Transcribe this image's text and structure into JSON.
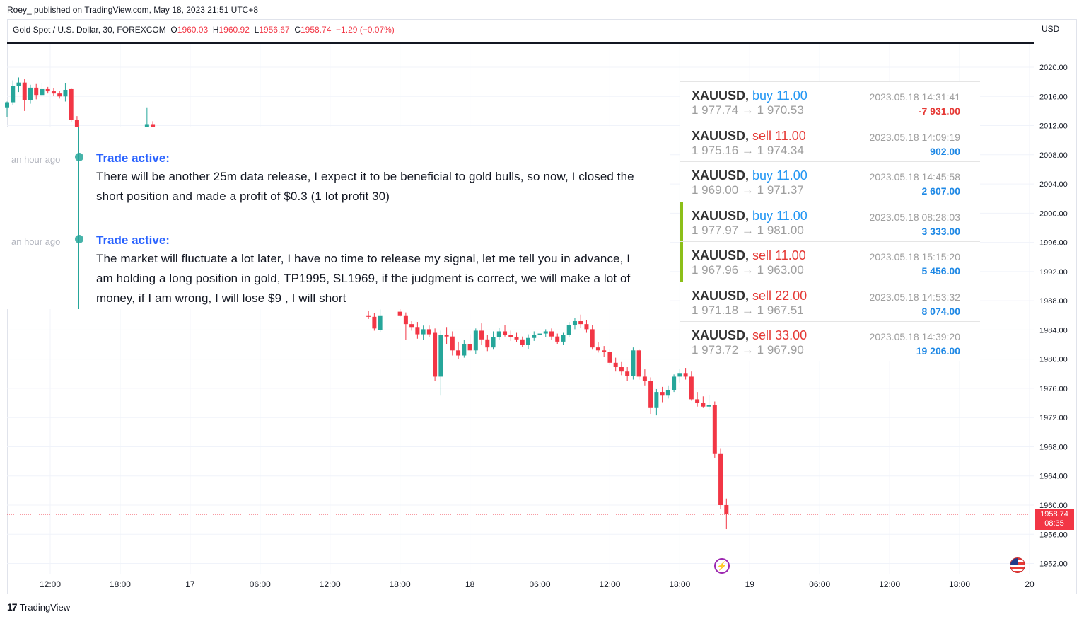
{
  "header": {
    "published": "Roey_ published on TradingView.com, May 18, 2023 21:51 UTC+8",
    "symbol": "Gold Spot / U.S. Dollar, 30, FOREXCOM",
    "o_label": "O",
    "o_value": "1960.03",
    "h_label": "H",
    "h_value": "1960.92",
    "l_label": "L",
    "l_value": "1956.67",
    "c_label": "C",
    "c_value": "1958.74",
    "change": "−1.29 (−0.07%)",
    "currency": "USD"
  },
  "colors": {
    "up": "#26a69a",
    "down": "#f23645",
    "idea_title": "#2962ff",
    "buy": "#2196f3",
    "sell": "#e53935",
    "highlight_bar": "#8cbf18"
  },
  "ideas": [
    {
      "time": "an hour ago",
      "title": "Trade active:",
      "text": "There will be another 25m data release, I expect it to be beneficial to gold bulls, so now, I closed the short position and made a profit of $0.3 (1 lot profit 30)"
    },
    {
      "time": "an hour ago",
      "title": "Trade active:",
      "text": "The market will fluctuate a lot later, I have no time to release my signal, let me tell you in advance, I am holding a long position in gold, TP1995, SL1969, if the judgment is correct, we will make a lot of money, if I am wrong, I will lose $9 , I will short"
    }
  ],
  "trades": [
    {
      "symbol": "XAUUSD,",
      "side": "buy",
      "qty": "11.00",
      "open": "1 977.74",
      "arrow": "→",
      "close": "1 970.53",
      "date": "2023.05.18 14:31:41",
      "profit": "-7 931.00",
      "highlight": false
    },
    {
      "symbol": "XAUUSD,",
      "side": "sell",
      "qty": "11.00",
      "open": "1 975.16",
      "arrow": "→",
      "close": "1 974.34",
      "date": "2023.05.18 14:09:19",
      "profit": "902.00",
      "highlight": false
    },
    {
      "symbol": "XAUUSD,",
      "side": "buy",
      "qty": "11.00",
      "open": "1 969.00",
      "arrow": "→",
      "close": "1 971.37",
      "date": "2023.05.18 14:45:58",
      "profit": "2 607.00",
      "highlight": false
    },
    {
      "symbol": "XAUUSD,",
      "side": "buy",
      "qty": "11.00",
      "open": "1 977.97",
      "arrow": "→",
      "close": "1 981.00",
      "date": "2023.05.18 08:28:03",
      "profit": "3 333.00",
      "highlight": true
    },
    {
      "symbol": "XAUUSD,",
      "side": "sell",
      "qty": "11.00",
      "open": "1 967.96",
      "arrow": "→",
      "close": "1 963.00",
      "date": "2023.05.18 15:15:20",
      "profit": "5 456.00",
      "highlight": true
    },
    {
      "symbol": "XAUUSD,",
      "side": "sell",
      "qty": "22.00",
      "open": "1 971.18",
      "arrow": "→",
      "close": "1 967.51",
      "date": "2023.05.18 14:53:32",
      "profit": "8 074.00",
      "highlight": false
    },
    {
      "symbol": "XAUUSD,",
      "side": "sell",
      "qty": "33.00",
      "open": "1 973.72",
      "arrow": "→",
      "close": "1 967.90",
      "date": "2023.05.18 14:39:20",
      "profit": "19 206.00",
      "highlight": false
    }
  ],
  "price_badge": {
    "price": "1958.74",
    "countdown": "08:35"
  },
  "footer": {
    "logo_mark": "17",
    "logo_text": "TradingView"
  },
  "chart_data": {
    "type": "candlestick",
    "y_ticks": [
      "2020.00",
      "2016.00",
      "2012.00",
      "2008.00",
      "2004.00",
      "2000.00",
      "1996.00",
      "1992.00",
      "1988.00",
      "1984.00",
      "1980.00",
      "1976.00",
      "1972.00",
      "1968.00",
      "1964.00",
      "1960.00",
      "1956.00",
      "1952.00"
    ],
    "ylim": [
      1950.5,
      2023.2
    ],
    "x_ticks": [
      {
        "label": "12:00",
        "t": 12
      },
      {
        "label": "18:00",
        "t": 18
      },
      {
        "label": "17",
        "t": 24
      },
      {
        "label": "06:00",
        "t": 30
      },
      {
        "label": "12:00",
        "t": 36
      },
      {
        "label": "18:00",
        "t": 42
      },
      {
        "label": "18",
        "t": 48
      },
      {
        "label": "06:00",
        "t": 54
      },
      {
        "label": "12:00",
        "t": 60
      },
      {
        "label": "18:00",
        "t": 66
      },
      {
        "label": "19",
        "t": 72
      },
      {
        "label": "06:00",
        "t": 78
      },
      {
        "label": "12:00",
        "t": 84
      },
      {
        "label": "18:00",
        "t": 90
      },
      {
        "label": "20",
        "t": 96
      }
    ],
    "current_price": 1958.74,
    "candles_early": [
      {
        "t": 8.3,
        "o": 2014.5,
        "h": 2015.3,
        "l": 2013.2,
        "c": 2015.2
      },
      {
        "t": 8.8,
        "o": 2015.2,
        "h": 2018.2,
        "l": 2014.8,
        "c": 2017.4
      },
      {
        "t": 9.3,
        "o": 2017.4,
        "h": 2018.6,
        "l": 2016.6,
        "c": 2017.9
      },
      {
        "t": 9.8,
        "o": 2017.9,
        "h": 2018.4,
        "l": 2014.0,
        "c": 2015.5
      },
      {
        "t": 10.3,
        "o": 2015.5,
        "h": 2017.6,
        "l": 2015.0,
        "c": 2017.2
      },
      {
        "t": 10.8,
        "o": 2017.2,
        "h": 2017.7,
        "l": 2015.6,
        "c": 2016.2
      },
      {
        "t": 11.3,
        "o": 2016.2,
        "h": 2017.8,
        "l": 2016.0,
        "c": 2017.0
      },
      {
        "t": 11.8,
        "o": 2017.0,
        "h": 2017.3,
        "l": 2016.4,
        "c": 2016.7
      },
      {
        "t": 12.3,
        "o": 2016.7,
        "h": 2017.1,
        "l": 2016.1,
        "c": 2016.4
      },
      {
        "t": 12.8,
        "o": 2016.4,
        "h": 2016.8,
        "l": 2015.7,
        "c": 2016.0
      },
      {
        "t": 13.3,
        "o": 2016.0,
        "h": 2017.8,
        "l": 2015.3,
        "c": 2016.9
      },
      {
        "t": 13.8,
        "o": 2017.0,
        "h": 2017.1,
        "l": 2012.5,
        "c": 2012.8
      },
      {
        "t": 14.3,
        "o": 2012.8,
        "h": 2013.3,
        "l": 2011.4,
        "c": 2011.5
      },
      {
        "t": 20.3,
        "o": 2011.4,
        "h": 2014.5,
        "l": 2011.2,
        "c": 2012.2
      },
      {
        "t": 20.8,
        "o": 2012.2,
        "h": 2012.6,
        "l": 2011.4,
        "c": 2011.5
      }
    ],
    "candles_late": [
      {
        "t": 39.3,
        "o": 1986.0,
        "h": 1986.6,
        "l": 1985.5,
        "c": 1985.8
      },
      {
        "t": 39.8,
        "o": 1985.8,
        "h": 1986.3,
        "l": 1983.9,
        "c": 1984.2
      },
      {
        "t": 40.3,
        "o": 1984.0,
        "h": 1986.8,
        "l": 1983.7,
        "c": 1986.0
      },
      {
        "t": 42.0,
        "o": 1986.5,
        "h": 1987.0,
        "l": 1985.8,
        "c": 1986.0
      },
      {
        "t": 42.5,
        "o": 1986.0,
        "h": 1986.4,
        "l": 1982.6,
        "c": 1984.8
      },
      {
        "t": 43.0,
        "o": 1984.8,
        "h": 1985.2,
        "l": 1983.9,
        "c": 1984.4
      },
      {
        "t": 43.5,
        "o": 1984.4,
        "h": 1985.1,
        "l": 1982.8,
        "c": 1983.4
      },
      {
        "t": 44.0,
        "o": 1983.4,
        "h": 1984.6,
        "l": 1982.6,
        "c": 1984.1
      },
      {
        "t": 44.5,
        "o": 1984.1,
        "h": 1984.6,
        "l": 1983.0,
        "c": 1983.4
      },
      {
        "t": 45.0,
        "o": 1983.6,
        "h": 1984.2,
        "l": 1977.0,
        "c": 1977.6
      },
      {
        "t": 45.5,
        "o": 1977.6,
        "h": 1983.9,
        "l": 1975.0,
        "c": 1983.3
      },
      {
        "t": 46.0,
        "o": 1983.3,
        "h": 1984.4,
        "l": 1982.1,
        "c": 1983.1
      },
      {
        "t": 46.5,
        "o": 1983.1,
        "h": 1983.8,
        "l": 1980.5,
        "c": 1981.2
      },
      {
        "t": 47.0,
        "o": 1981.2,
        "h": 1982.4,
        "l": 1980.0,
        "c": 1980.5
      },
      {
        "t": 47.5,
        "o": 1980.5,
        "h": 1982.6,
        "l": 1980.2,
        "c": 1982.1
      },
      {
        "t": 48.0,
        "o": 1982.1,
        "h": 1983.4,
        "l": 1981.0,
        "c": 1981.2
      },
      {
        "t": 48.5,
        "o": 1981.2,
        "h": 1984.2,
        "l": 1980.7,
        "c": 1983.9
      },
      {
        "t": 49.0,
        "o": 1983.9,
        "h": 1984.9,
        "l": 1982.0,
        "c": 1982.7
      },
      {
        "t": 49.5,
        "o": 1982.7,
        "h": 1983.3,
        "l": 1981.1,
        "c": 1981.6
      },
      {
        "t": 50.0,
        "o": 1981.6,
        "h": 1983.8,
        "l": 1981.3,
        "c": 1983.0
      },
      {
        "t": 50.5,
        "o": 1983.0,
        "h": 1984.3,
        "l": 1982.6,
        "c": 1983.8
      },
      {
        "t": 51.0,
        "o": 1983.8,
        "h": 1984.7,
        "l": 1983.1,
        "c": 1983.3
      },
      {
        "t": 51.5,
        "o": 1983.3,
        "h": 1983.9,
        "l": 1982.5,
        "c": 1983.0
      },
      {
        "t": 52.0,
        "o": 1983.0,
        "h": 1983.6,
        "l": 1982.3,
        "c": 1982.7
      },
      {
        "t": 52.5,
        "o": 1982.7,
        "h": 1983.1,
        "l": 1981.7,
        "c": 1982.0
      },
      {
        "t": 53.0,
        "o": 1982.0,
        "h": 1983.4,
        "l": 1981.4,
        "c": 1982.9
      },
      {
        "t": 53.5,
        "o": 1982.9,
        "h": 1983.8,
        "l": 1982.5,
        "c": 1983.3
      },
      {
        "t": 54.0,
        "o": 1983.3,
        "h": 1983.9,
        "l": 1982.8,
        "c": 1983.5
      },
      {
        "t": 54.5,
        "o": 1983.5,
        "h": 1984.1,
        "l": 1983.0,
        "c": 1983.8
      },
      {
        "t": 55.0,
        "o": 1983.8,
        "h": 1984.2,
        "l": 1982.6,
        "c": 1983.1
      },
      {
        "t": 55.5,
        "o": 1983.1,
        "h": 1983.5,
        "l": 1982.1,
        "c": 1982.4
      },
      {
        "t": 56.0,
        "o": 1982.4,
        "h": 1983.6,
        "l": 1982.0,
        "c": 1983.3
      },
      {
        "t": 56.5,
        "o": 1983.3,
        "h": 1985.1,
        "l": 1983.0,
        "c": 1984.7
      },
      {
        "t": 57.0,
        "o": 1984.7,
        "h": 1985.6,
        "l": 1984.1,
        "c": 1985.2
      },
      {
        "t": 57.5,
        "o": 1985.2,
        "h": 1986.1,
        "l": 1984.3,
        "c": 1984.8
      },
      {
        "t": 58.0,
        "o": 1984.8,
        "h": 1985.3,
        "l": 1983.6,
        "c": 1984.1
      },
      {
        "t": 58.5,
        "o": 1984.1,
        "h": 1984.7,
        "l": 1981.3,
        "c": 1981.6
      },
      {
        "t": 59.0,
        "o": 1981.6,
        "h": 1982.3,
        "l": 1980.9,
        "c": 1981.2
      },
      {
        "t": 59.5,
        "o": 1981.2,
        "h": 1981.8,
        "l": 1980.3,
        "c": 1981.0
      },
      {
        "t": 60.0,
        "o": 1981.0,
        "h": 1981.3,
        "l": 1979.2,
        "c": 1979.5
      },
      {
        "t": 60.5,
        "o": 1979.5,
        "h": 1980.2,
        "l": 1978.3,
        "c": 1978.9
      },
      {
        "t": 61.0,
        "o": 1978.9,
        "h": 1979.6,
        "l": 1977.8,
        "c": 1978.3
      },
      {
        "t": 61.5,
        "o": 1978.3,
        "h": 1978.9,
        "l": 1977.0,
        "c": 1977.7
      },
      {
        "t": 62.0,
        "o": 1977.7,
        "h": 1981.6,
        "l": 1977.2,
        "c": 1981.2
      },
      {
        "t": 62.5,
        "o": 1981.2,
        "h": 1981.4,
        "l": 1977.2,
        "c": 1977.6
      },
      {
        "t": 63.0,
        "o": 1977.6,
        "h": 1978.6,
        "l": 1976.4,
        "c": 1977.0
      },
      {
        "t": 63.5,
        "o": 1977.0,
        "h": 1977.5,
        "l": 1972.5,
        "c": 1973.3
      },
      {
        "t": 64.0,
        "o": 1973.3,
        "h": 1975.9,
        "l": 1972.3,
        "c": 1975.5
      },
      {
        "t": 64.5,
        "o": 1975.5,
        "h": 1976.2,
        "l": 1974.1,
        "c": 1975.0
      },
      {
        "t": 65.0,
        "o": 1975.0,
        "h": 1976.4,
        "l": 1974.6,
        "c": 1975.8
      },
      {
        "t": 65.5,
        "o": 1975.8,
        "h": 1977.9,
        "l": 1975.5,
        "c": 1977.6
      },
      {
        "t": 66.0,
        "o": 1977.6,
        "h": 1978.7,
        "l": 1976.8,
        "c": 1978.1
      },
      {
        "t": 66.5,
        "o": 1978.1,
        "h": 1978.8,
        "l": 1977.2,
        "c": 1977.6
      },
      {
        "t": 67.0,
        "o": 1977.6,
        "h": 1978.3,
        "l": 1974.3,
        "c": 1974.5
      },
      {
        "t": 67.5,
        "o": 1974.5,
        "h": 1975.5,
        "l": 1973.5,
        "c": 1974.0
      },
      {
        "t": 68.0,
        "o": 1974.0,
        "h": 1974.9,
        "l": 1973.3,
        "c": 1973.5
      },
      {
        "t": 68.5,
        "o": 1973.5,
        "h": 1975.1,
        "l": 1973.1,
        "c": 1973.7
      },
      {
        "t": 69.0,
        "o": 1973.7,
        "h": 1974.2,
        "l": 1966.5,
        "c": 1967.0
      },
      {
        "t": 69.5,
        "o": 1967.0,
        "h": 1967.8,
        "l": 1959.5,
        "c": 1960.0
      },
      {
        "t": 70.0,
        "o": 1960.0,
        "h": 1960.9,
        "l": 1956.7,
        "c": 1958.74
      }
    ]
  }
}
